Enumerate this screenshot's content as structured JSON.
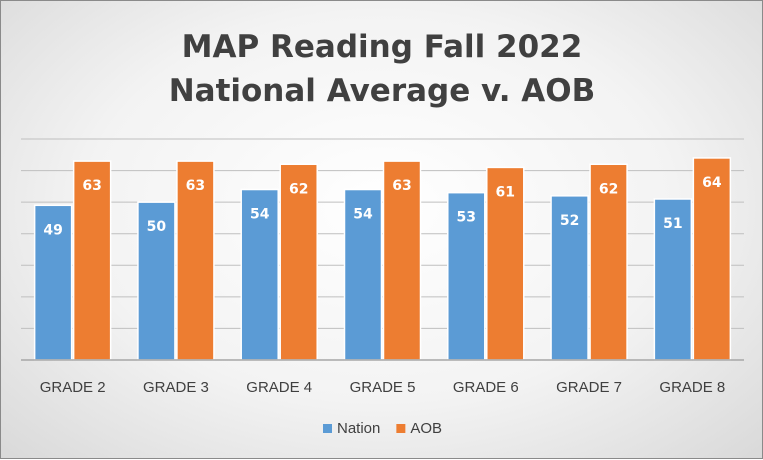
{
  "chart_data": {
    "type": "bar",
    "title": [
      "MAP Reading Fall 2022",
      "National Average v. AOB"
    ],
    "categories": [
      "GRADE 2",
      "GRADE 3",
      "GRADE 4",
      "GRADE 5",
      "GRADE 6",
      "GRADE 7",
      "GRADE 8"
    ],
    "series": [
      {
        "name": "Nation",
        "color": "#5b9bd5",
        "values": [
          49,
          50,
          54,
          54,
          53,
          52,
          51
        ]
      },
      {
        "name": "AOB",
        "color": "#ed7d31",
        "values": [
          63,
          63,
          62,
          63,
          61,
          62,
          64
        ]
      }
    ],
    "ylim": [
      0,
      70
    ],
    "grid": true,
    "data_labels": true,
    "legend_position": "bottom"
  }
}
